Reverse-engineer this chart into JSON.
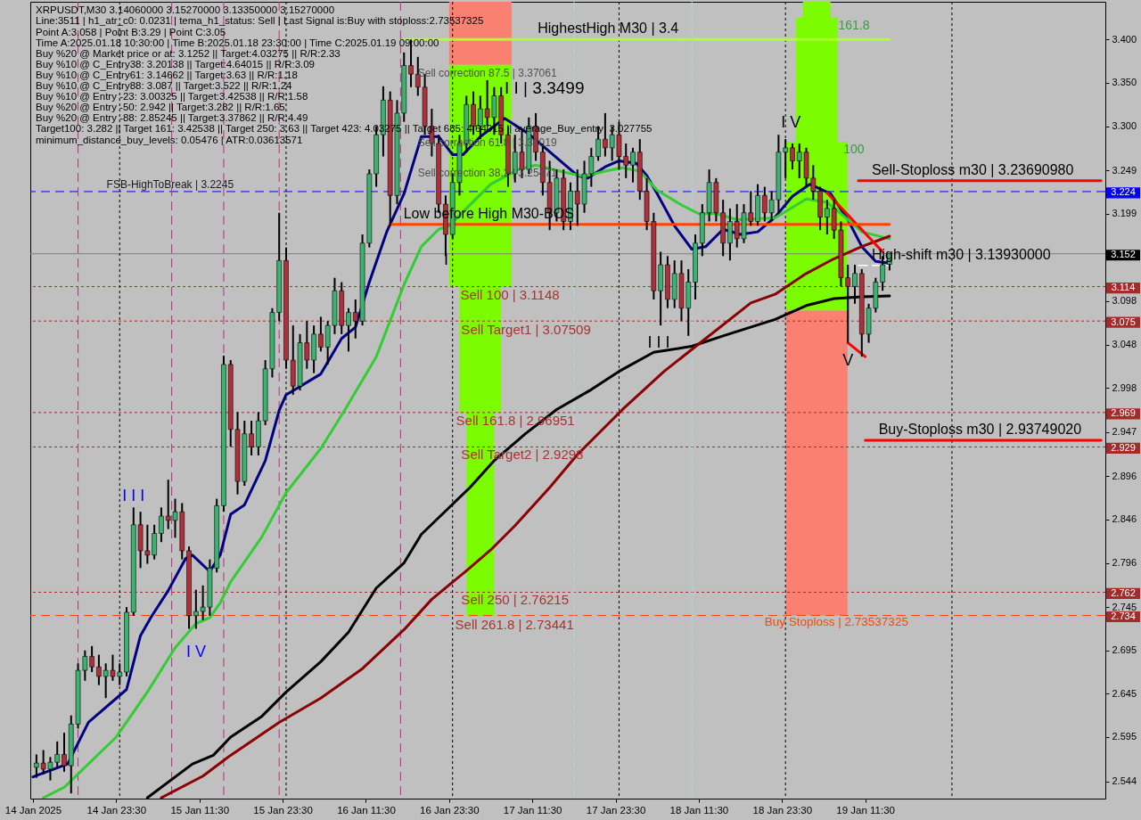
{
  "chart_data": {
    "type": "candlestick",
    "title": "XRPUSDT,M30  3.14060000 3.15270000 3.13350000 3.15270000",
    "xlim": [
      "2025-01-14T11:07",
      "2025-01-20T22:07"
    ],
    "ylim": [
      2.524,
      3.4435
    ],
    "xticks": [
      {
        "value": "2025-01-14T11:30",
        "label": "14 Jan 2025"
      },
      {
        "value": "2025-01-14T23:30",
        "label": "14 Jan 23:30"
      },
      {
        "value": "2025-01-15T11:30",
        "label": "15 Jan 11:30"
      },
      {
        "value": "2025-01-15T23:30",
        "label": "15 Jan 23:30"
      },
      {
        "value": "2025-01-16T11:30",
        "label": "16 Jan 11:30"
      },
      {
        "value": "2025-01-16T23:30",
        "label": "16 Jan 23:30"
      },
      {
        "value": "2025-01-17T11:30",
        "label": "17 Jan 11:30"
      },
      {
        "value": "2025-01-17T23:30",
        "label": "17 Jan 23:30"
      },
      {
        "value": "2025-01-18T11:30",
        "label": "18 Jan 11:30"
      },
      {
        "value": "2025-01-18T23:30",
        "label": "18 Jan 23:30"
      },
      {
        "value": "2025-01-19T11:30",
        "label": "19 Jan 11:30"
      }
    ],
    "yticks": [
      {
        "value": 3.4,
        "label": "3.400"
      },
      {
        "value": 3.35,
        "label": "3.350"
      },
      {
        "value": 3.3,
        "label": "3.300"
      },
      3.249,
      3.199,
      3.098,
      3.048,
      2.998,
      2.947,
      2.896,
      2.846,
      2.796,
      2.745,
      2.695,
      2.645,
      2.595,
      2.544
    ],
    "x": [
      "2025-01-14T12:00",
      "2025-01-14T13:00",
      "2025-01-14T14:00",
      "2025-01-14T15:00",
      "2025-01-14T16:00",
      "2025-01-14T17:00",
      "2025-01-14T18:00",
      "2025-01-14T19:00",
      "2025-01-14T20:00",
      "2025-01-14T21:00",
      "2025-01-14T22:00",
      "2025-01-14T23:00",
      "2025-01-15T00:00",
      "2025-01-15T01:00",
      "2025-01-15T02:00",
      "2025-01-15T03:00",
      "2025-01-15T04:00",
      "2025-01-15T05:00",
      "2025-01-15T06:00",
      "2025-01-15T07:00",
      "2025-01-15T08:00",
      "2025-01-15T09:00",
      "2025-01-15T10:00",
      "2025-01-15T11:00",
      "2025-01-15T12:00",
      "2025-01-15T13:00",
      "2025-01-15T14:00",
      "2025-01-15T15:00",
      "2025-01-15T16:00",
      "2025-01-15T17:00",
      "2025-01-15T18:00",
      "2025-01-15T19:00",
      "2025-01-15T20:00",
      "2025-01-15T21:00",
      "2025-01-15T22:00",
      "2025-01-15T23:00",
      "2025-01-16T00:00",
      "2025-01-16T01:00",
      "2025-01-16T02:00",
      "2025-01-16T03:00",
      "2025-01-16T04:00",
      "2025-01-16T05:00",
      "2025-01-16T06:00",
      "2025-01-16T07:00",
      "2025-01-16T08:00",
      "2025-01-16T09:00",
      "2025-01-16T10:00",
      "2025-01-16T11:00",
      "2025-01-16T12:00",
      "2025-01-16T13:00",
      "2025-01-16T14:00",
      "2025-01-16T15:00",
      "2025-01-16T16:00",
      "2025-01-16T17:00",
      "2025-01-16T18:00",
      "2025-01-16T19:00",
      "2025-01-16T20:00",
      "2025-01-16T21:00",
      "2025-01-16T22:00",
      "2025-01-16T23:00",
      "2025-01-17T00:00",
      "2025-01-17T01:00",
      "2025-01-17T02:00",
      "2025-01-17T03:00",
      "2025-01-17T04:00",
      "2025-01-17T05:00",
      "2025-01-17T06:00",
      "2025-01-17T07:00",
      "2025-01-17T08:00",
      "2025-01-17T09:00",
      "2025-01-17T10:00",
      "2025-01-17T11:00",
      "2025-01-17T12:00",
      "2025-01-17T13:00",
      "2025-01-17T14:00",
      "2025-01-17T15:00",
      "2025-01-17T16:00",
      "2025-01-17T17:00",
      "2025-01-17T18:00",
      "2025-01-17T19:00",
      "2025-01-17T20:00",
      "2025-01-17T21:00",
      "2025-01-17T22:00",
      "2025-01-17T23:00",
      "2025-01-18T00:00",
      "2025-01-18T01:00",
      "2025-01-18T02:00",
      "2025-01-18T03:00",
      "2025-01-18T04:00",
      "2025-01-18T05:00",
      "2025-01-18T06:00",
      "2025-01-18T07:00",
      "2025-01-18T08:00",
      "2025-01-18T09:00",
      "2025-01-18T10:00",
      "2025-01-18T11:00",
      "2025-01-18T12:00",
      "2025-01-18T13:00",
      "2025-01-18T14:00",
      "2025-01-18T15:00",
      "2025-01-18T16:00",
      "2025-01-18T17:00",
      "2025-01-18T18:00",
      "2025-01-18T19:00",
      "2025-01-18T20:00",
      "2025-01-18T21:00",
      "2025-01-18T22:00",
      "2025-01-18T23:00",
      "2025-01-19T00:00",
      "2025-01-19T01:00",
      "2025-01-19T02:00",
      "2025-01-19T03:00",
      "2025-01-19T04:00",
      "2025-01-19T05:00",
      "2025-01-19T06:00",
      "2025-01-19T07:00",
      "2025-01-19T08:00",
      "2025-01-19T09:00",
      "2025-01-19T10:00",
      "2025-01-19T11:00",
      "2025-01-19T12:00",
      "2025-01-19T13:00",
      "2025-01-19T14:00",
      "2025-01-19T15:00"
    ],
    "ohlc": [
      [
        2.56,
        2.575,
        2.548,
        2.565
      ],
      [
        2.565,
        2.58,
        2.552,
        2.558
      ],
      [
        2.558,
        2.572,
        2.545,
        2.566
      ],
      [
        2.566,
        2.59,
        2.56,
        2.575
      ],
      [
        2.575,
        2.6,
        2.555,
        2.562
      ],
      [
        2.562,
        2.62,
        2.53,
        2.61
      ],
      [
        2.61,
        2.68,
        2.605,
        2.672
      ],
      [
        2.672,
        2.695,
        2.66,
        2.688
      ],
      [
        2.688,
        2.7,
        2.67,
        2.676
      ],
      [
        2.676,
        2.69,
        2.655,
        2.665
      ],
      [
        2.665,
        2.68,
        2.64,
        2.672
      ],
      [
        2.672,
        2.69,
        2.66,
        2.665
      ],
      [
        2.665,
        2.68,
        2.655,
        2.67
      ],
      [
        2.67,
        2.745,
        2.665,
        2.739
      ],
      [
        2.739,
        2.86,
        2.735,
        2.84
      ],
      [
        2.84,
        2.855,
        2.79,
        2.81
      ],
      [
        2.81,
        2.84,
        2.795,
        2.805
      ],
      [
        2.805,
        2.84,
        2.8,
        2.83
      ],
      [
        2.83,
        2.86,
        2.82,
        2.85
      ],
      [
        2.85,
        2.892,
        2.835,
        2.845
      ],
      [
        2.845,
        2.87,
        2.825,
        2.855
      ],
      [
        2.855,
        2.865,
        2.8,
        2.81
      ],
      [
        2.81,
        2.815,
        2.72,
        2.735
      ],
      [
        2.735,
        2.765,
        2.72,
        2.74
      ],
      [
        2.74,
        2.77,
        2.73,
        2.745
      ],
      [
        2.745,
        2.8,
        2.735,
        2.79
      ],
      [
        2.79,
        2.87,
        2.785,
        2.862
      ],
      [
        2.862,
        3.035,
        2.855,
        3.025
      ],
      [
        3.025,
        3.03,
        2.93,
        2.95
      ],
      [
        2.95,
        2.97,
        2.875,
        2.89
      ],
      [
        2.89,
        2.96,
        2.885,
        2.945
      ],
      [
        2.945,
        2.96,
        2.92,
        2.93
      ],
      [
        2.93,
        2.97,
        2.92,
        2.96
      ],
      [
        2.96,
        3.03,
        2.955,
        3.02
      ],
      [
        3.02,
        3.09,
        3.01,
        3.085
      ],
      [
        3.085,
        3.2,
        3.075,
        3.145
      ],
      [
        3.145,
        3.16,
        3.02,
        3.03
      ],
      [
        3.03,
        3.07,
        2.99,
        3.0
      ],
      [
        3.0,
        3.06,
        2.995,
        3.05
      ],
      [
        3.05,
        3.075,
        3.02,
        3.03
      ],
      [
        3.03,
        3.07,
        3.015,
        3.06
      ],
      [
        3.06,
        3.08,
        3.04,
        3.045
      ],
      [
        3.045,
        3.075,
        3.025,
        3.07
      ],
      [
        3.07,
        3.125,
        3.06,
        3.11
      ],
      [
        3.11,
        3.12,
        3.06,
        3.07
      ],
      [
        3.07,
        3.09,
        3.04,
        3.085
      ],
      [
        3.085,
        3.1,
        3.055,
        3.075
      ],
      [
        3.075,
        3.175,
        3.07,
        3.165
      ],
      [
        3.165,
        3.25,
        3.16,
        3.245
      ],
      [
        3.245,
        3.3,
        3.23,
        3.29
      ],
      [
        3.29,
        3.346,
        3.265,
        3.33
      ],
      [
        3.33,
        3.34,
        3.185,
        3.22
      ],
      [
        3.22,
        3.33,
        3.21,
        3.315
      ],
      [
        3.315,
        3.385,
        3.305,
        3.37
      ],
      [
        3.37,
        3.4,
        3.345,
        3.36
      ],
      [
        3.36,
        3.38,
        3.335,
        3.345
      ],
      [
        3.345,
        3.36,
        3.29,
        3.3
      ],
      [
        3.3,
        3.32,
        3.265,
        3.28
      ],
      [
        3.28,
        3.29,
        3.2,
        3.21
      ],
      [
        3.21,
        3.22,
        3.15,
        3.175
      ],
      [
        3.175,
        3.245,
        3.17,
        3.235
      ],
      [
        3.235,
        3.29,
        3.22,
        3.28
      ],
      [
        3.28,
        3.335,
        3.27,
        3.325
      ],
      [
        3.325,
        3.34,
        3.29,
        3.3
      ],
      [
        3.3,
        3.335,
        3.285,
        3.32
      ],
      [
        3.32,
        3.353,
        3.3,
        3.31
      ],
      [
        3.31,
        3.345,
        3.29,
        3.335
      ],
      [
        3.335,
        3.345,
        3.28,
        3.29
      ],
      [
        3.29,
        3.3,
        3.23,
        3.245
      ],
      [
        3.245,
        3.29,
        3.235,
        3.27
      ],
      [
        3.27,
        3.295,
        3.24,
        3.25
      ],
      [
        3.25,
        3.31,
        3.245,
        3.3
      ],
      [
        3.3,
        3.315,
        3.26,
        3.27
      ],
      [
        3.27,
        3.28,
        3.22,
        3.235
      ],
      [
        3.235,
        3.26,
        3.18,
        3.2
      ],
      [
        3.2,
        3.25,
        3.19,
        3.24
      ],
      [
        3.24,
        3.25,
        3.18,
        3.19
      ],
      [
        3.19,
        3.235,
        3.18,
        3.225
      ],
      [
        3.225,
        3.25,
        3.185,
        3.21
      ],
      [
        3.21,
        3.26,
        3.2,
        3.245
      ],
      [
        3.245,
        3.275,
        3.23,
        3.265
      ],
      [
        3.265,
        3.3,
        3.26,
        3.285
      ],
      [
        3.285,
        3.315,
        3.265,
        3.275
      ],
      [
        3.275,
        3.3,
        3.26,
        3.29
      ],
      [
        3.29,
        3.305,
        3.25,
        3.265
      ],
      [
        3.265,
        3.28,
        3.24,
        3.255
      ],
      [
        3.255,
        3.275,
        3.235,
        3.27
      ],
      [
        3.27,
        3.285,
        3.215,
        3.225
      ],
      [
        3.225,
        3.24,
        3.18,
        3.19
      ],
      [
        3.19,
        3.2,
        3.1,
        3.11
      ],
      [
        3.11,
        3.155,
        3.07,
        3.14
      ],
      [
        3.14,
        3.15,
        3.09,
        3.1
      ],
      [
        3.1,
        3.145,
        3.09,
        3.13
      ],
      [
        3.13,
        3.145,
        3.075,
        3.09
      ],
      [
        3.09,
        3.135,
        3.058,
        3.12
      ],
      [
        3.12,
        3.175,
        3.1,
        3.165
      ],
      [
        3.165,
        3.21,
        3.15,
        3.2
      ],
      [
        3.2,
        3.25,
        3.19,
        3.235
      ],
      [
        3.235,
        3.24,
        3.19,
        3.2
      ],
      [
        3.2,
        3.215,
        3.15,
        3.165
      ],
      [
        3.165,
        3.205,
        3.145,
        3.19
      ],
      [
        3.19,
        3.21,
        3.16,
        3.17
      ],
      [
        3.17,
        3.21,
        3.165,
        3.2
      ],
      [
        3.2,
        3.225,
        3.185,
        3.19
      ],
      [
        3.19,
        3.233,
        3.185,
        3.22
      ],
      [
        3.22,
        3.23,
        3.19,
        3.2
      ],
      [
        3.2,
        3.225,
        3.19,
        3.215
      ],
      [
        3.215,
        3.29,
        3.2,
        3.27
      ],
      [
        3.27,
        3.285,
        3.24,
        3.275
      ],
      [
        3.275,
        3.28,
        3.25,
        3.26
      ],
      [
        3.26,
        3.28,
        3.24,
        3.27
      ],
      [
        3.27,
        3.275,
        3.23,
        3.24
      ],
      [
        3.24,
        3.255,
        3.215,
        3.225
      ],
      [
        3.225,
        3.23,
        3.18,
        3.195
      ],
      [
        3.195,
        3.215,
        3.175,
        3.205
      ],
      [
        3.205,
        3.215,
        3.17,
        3.18
      ],
      [
        3.18,
        3.19,
        3.115,
        3.125
      ],
      [
        3.125,
        3.14,
        3.05,
        3.115
      ],
      [
        3.115,
        3.14,
        3.095,
        3.13
      ],
      [
        3.13,
        3.135,
        3.034,
        3.06
      ],
      [
        3.06,
        3.095,
        3.05,
        3.09
      ],
      [
        3.09,
        3.125,
        3.085,
        3.12
      ],
      [
        3.12,
        3.15,
        3.11,
        3.14
      ],
      [
        3.1406,
        3.1527,
        3.1335,
        3.1527
      ]
    ],
    "colors": [
      "#3cb371",
      "#b0303a",
      "#3cb371",
      "#3cb371",
      "#b0303a",
      "#3cb371",
      "#3cb371",
      "#3cb371",
      "#b0303a",
      "#b0303a",
      "#3cb371",
      "#b0303a",
      "#3cb371",
      "#3cb371",
      "#3cb371",
      "#b0303a",
      "#b0303a",
      "#3cb371",
      "#3cb371",
      "#b0303a",
      "#3cb371",
      "#b0303a",
      "#b0303a",
      "#3cb371",
      "#3cb371",
      "#3cb371",
      "#3cb371",
      "#3cb371",
      "#b0303a",
      "#b0303a",
      "#3cb371",
      "#b0303a",
      "#3cb371",
      "#3cb371",
      "#3cb371",
      "#3cb371",
      "#b0303a",
      "#b0303a",
      "#3cb371",
      "#b0303a",
      "#3cb371",
      "#b0303a",
      "#3cb371",
      "#3cb371",
      "#b0303a",
      "#3cb371",
      "#b0303a",
      "#3cb371",
      "#3cb371",
      "#3cb371",
      "#3cb371",
      "#b0303a",
      "#3cb371",
      "#3cb371",
      "#b0303a",
      "#b0303a",
      "#b0303a",
      "#b0303a",
      "#b0303a",
      "#b0303a",
      "#3cb371",
      "#3cb371",
      "#3cb371",
      "#b0303a",
      "#3cb371",
      "#b0303a",
      "#3cb371",
      "#b0303a",
      "#b0303a",
      "#3cb371",
      "#b0303a",
      "#3cb371",
      "#b0303a",
      "#b0303a",
      "#b0303a",
      "#3cb371",
      "#b0303a",
      "#3cb371",
      "#b0303a",
      "#3cb371",
      "#3cb371",
      "#3cb371",
      "#b0303a",
      "#3cb371",
      "#b0303a",
      "#b0303a",
      "#3cb371",
      "#b0303a",
      "#b0303a",
      "#b0303a",
      "#3cb371",
      "#b0303a",
      "#3cb371",
      "#b0303a",
      "#3cb371",
      "#3cb371",
      "#3cb371",
      "#3cb371",
      "#b0303a",
      "#b0303a",
      "#3cb371",
      "#b0303a",
      "#3cb371",
      "#b0303a",
      "#3cb371",
      "#b0303a",
      "#3cb371",
      "#3cb371",
      "#3cb371",
      "#b0303a",
      "#3cb371",
      "#b0303a",
      "#b0303a",
      "#b0303a",
      "#3cb371",
      "#b0303a",
      "#b0303a",
      "#b0303a",
      "#3cb371",
      "#b0303a",
      "#3cb371",
      "#3cb371",
      "#3cb371",
      "#3cb371"
    ],
    "series": [
      {
        "type": "bar",
        "color": "#fa8072",
        "x": [
          "2025-01-17T04:00"
        ],
        "values": [
          0.07289
        ],
        "base": [
          3.37061
        ]
      },
      {
        "type": "bar",
        "color": "#7cfc00",
        "x": [
          "2025-01-17T04:00"
        ],
        "values": [
          0.25581
        ],
        "base": [
          3.1148
        ]
      },
      {
        "type": "bar",
        "color": "#7cfc00",
        "x": [
          "2025-01-17T04:00"
        ],
        "values": [
          0.14529
        ],
        "base": [
          2.96951
        ]
      },
      {
        "type": "bar",
        "color": "#7cfc00",
        "x": [
          "2025-01-17T04:00"
        ],
        "values": [
          0.2351
        ],
        "base": [
          2.73441
        ]
      },
      {
        "type": "bar",
        "color": "#7cfc00",
        "x": [
          "2025-01-19T04:30"
        ],
        "values": [
          0.01812
        ],
        "base": [
          3.42538
        ]
      },
      {
        "type": "bar",
        "color": "#7cfc00",
        "x": [
          "2025-01-19T04:30"
        ],
        "values": [
          0.14338
        ],
        "base": [
          3.282
        ]
      },
      {
        "type": "bar",
        "color": "#7cfc00",
        "x": [
          "2025-01-19T04:30"
        ],
        "values": [
          0.195
        ],
        "base": [
          3.087
        ]
      },
      {
        "type": "bar",
        "color": "#fa8072",
        "x": [
          "2025-01-19T04:30"
        ],
        "values": [
          0.35163
        ],
        "base": [
          2.73537325
        ]
      },
      {
        "type": "line",
        "color": "#000080",
        "x": [
          "2025-01-14T11:30",
          "2025-01-14T16:30",
          "2025-01-14T19:30",
          "2025-01-15T01:00",
          "2025-01-15T03:00",
          "2025-01-15T04:30",
          "2025-01-15T07:00",
          "2025-01-15T09:30",
          "2025-01-15T10:30",
          "2025-01-15T13:00",
          "2025-01-15T14:30",
          "2025-01-15T16:00",
          "2025-01-15T18:00",
          "2025-01-15T21:00",
          "2025-01-15T23:00",
          "2025-01-16T00:00",
          "2025-01-16T05:00",
          "2025-01-16T08:00",
          "2025-01-16T10:00",
          "2025-01-16T12:00",
          "2025-01-16T14:30",
          "2025-01-16T17:00",
          "2025-01-16T19:30",
          "2025-01-16T22:00",
          "2025-01-17T00:00",
          "2025-01-17T01:30",
          "2025-01-17T04:00",
          "2025-01-17T07:30",
          "2025-01-17T11:00",
          "2025-01-17T14:30",
          "2025-01-17T18:00",
          "2025-01-17T19:30",
          "2025-01-17T22:00",
          "2025-01-18T00:00",
          "2025-01-18T02:30",
          "2025-01-18T04:00",
          "2025-01-18T05:30",
          "2025-01-18T08:00",
          "2025-01-18T10:30",
          "2025-01-18T12:30",
          "2025-01-18T15:00",
          "2025-01-18T17:30",
          "2025-01-18T20:00",
          "2025-01-18T22:30",
          "2025-01-19T01:00",
          "2025-01-19T03:30",
          "2025-01-19T06:30",
          "2025-01-19T09:00",
          "2025-01-19T11:00",
          "2025-01-19T13:00",
          "2025-01-19T15:00"
        ],
        "values": [
          2.549,
          2.564,
          2.612,
          2.65,
          2.712,
          2.733,
          2.764,
          2.801,
          2.805,
          2.786,
          2.805,
          2.852,
          2.863,
          2.914,
          2.972,
          2.99,
          3.014,
          3.055,
          3.068,
          3.12,
          3.178,
          3.222,
          3.288,
          3.288,
          3.267,
          3.267,
          3.288,
          3.309,
          3.291,
          3.267,
          3.243,
          3.24,
          3.253,
          3.26,
          3.257,
          3.243,
          3.222,
          3.185,
          3.158,
          3.161,
          3.181,
          3.175,
          3.178,
          3.195,
          3.219,
          3.233,
          3.222,
          3.192,
          3.161,
          3.144,
          3.142
        ]
      },
      {
        "type": "line",
        "color": "#32cd32",
        "x": [
          "2025-01-14T13:00",
          "2025-01-14T16:00",
          "2025-01-14T23:30",
          "2025-01-15T04:00",
          "2025-01-15T08:00",
          "2025-01-15T11:00",
          "2025-01-15T13:00",
          "2025-01-15T14:30",
          "2025-01-15T16:00",
          "2025-01-15T20:30",
          "2025-01-16T00:00",
          "2025-01-16T05:00",
          "2025-01-16T08:30",
          "2025-01-16T13:00",
          "2025-01-16T17:00",
          "2025-01-16T19:30",
          "2025-01-16T22:00",
          "2025-01-16T23:30",
          "2025-01-17T02:00",
          "2025-01-17T05:30",
          "2025-01-17T09:30",
          "2025-01-17T12:00",
          "2025-01-17T16:00",
          "2025-01-17T19:00",
          "2025-01-17T22:00",
          "2025-01-18T00:30",
          "2025-01-18T03:00",
          "2025-01-18T05:30",
          "2025-01-18T09:00",
          "2025-01-18T11:30",
          "2025-01-18T14:00",
          "2025-01-18T17:00",
          "2025-01-18T22:30",
          "2025-01-19T03:00",
          "2025-01-19T06:00",
          "2025-01-19T08:00",
          "2025-01-19T11:00",
          "2025-01-19T15:00"
        ],
        "values": [
          2.525,
          2.537,
          2.595,
          2.647,
          2.698,
          2.726,
          2.733,
          2.75,
          2.774,
          2.826,
          2.877,
          2.928,
          2.973,
          3.034,
          3.117,
          3.161,
          3.181,
          3.185,
          3.205,
          3.233,
          3.25,
          3.255,
          3.247,
          3.242,
          3.248,
          3.252,
          3.248,
          3.226,
          3.209,
          3.199,
          3.199,
          3.192,
          3.194,
          3.216,
          3.212,
          3.199,
          3.178,
          3.17
        ]
      },
      {
        "type": "line",
        "color": "#000000",
        "x": [
          "2025-01-15T04:00",
          "2025-01-15T10:30",
          "2025-01-15T13:30",
          "2025-01-15T16:00",
          "2025-01-15T20:30",
          "2025-01-16T00:00",
          "2025-01-16T05:00",
          "2025-01-16T09:00",
          "2025-01-16T13:00",
          "2025-01-16T17:00",
          "2025-01-16T19:30",
          "2025-01-16T23:00",
          "2025-01-17T02:30",
          "2025-01-17T06:00",
          "2025-01-17T10:30",
          "2025-01-17T15:00",
          "2025-01-17T20:00",
          "2025-01-18T00:00",
          "2025-01-18T05:00",
          "2025-01-18T10:30",
          "2025-01-18T15:00",
          "2025-01-18T22:30",
          "2025-01-19T03:00",
          "2025-01-19T07:00",
          "2025-01-19T11:00",
          "2025-01-19T15:00"
        ],
        "values": [
          2.525,
          2.564,
          2.574,
          2.595,
          2.619,
          2.647,
          2.682,
          2.716,
          2.767,
          2.796,
          2.829,
          2.856,
          2.883,
          2.914,
          2.945,
          2.973,
          2.996,
          3.017,
          3.039,
          3.046,
          3.058,
          3.077,
          3.093,
          3.101,
          3.103,
          3.104
        ]
      },
      {
        "type": "line",
        "color": "#8b0000",
        "x": [
          "2025-01-15T06:00",
          "2025-01-15T12:00",
          "2025-01-15T16:00",
          "2025-01-15T23:00",
          "2025-01-16T05:00",
          "2025-01-16T11:00",
          "2025-01-16T17:00",
          "2025-01-16T21:00",
          "2025-01-17T02:00",
          "2025-01-17T05:30",
          "2025-01-17T09:00",
          "2025-01-17T14:00",
          "2025-01-17T18:00",
          "2025-01-18T00:30",
          "2025-01-18T06:30",
          "2025-01-18T12:30",
          "2025-01-18T19:00",
          "2025-01-18T22:30",
          "2025-01-19T03:00",
          "2025-01-19T07:00",
          "2025-01-19T11:00",
          "2025-01-19T15:00"
        ],
        "values": [
          2.525,
          2.55,
          2.574,
          2.612,
          2.64,
          2.674,
          2.719,
          2.754,
          2.787,
          2.811,
          2.839,
          2.883,
          2.921,
          2.973,
          3.017,
          3.055,
          3.096,
          3.106,
          3.13,
          3.147,
          3.161,
          3.173
        ]
      },
      {
        "type": "line",
        "color": "#ff0000",
        "x": [
          "2025-01-19T06:00",
          "2025-01-19T14:00"
        ],
        "values": [
          3.223,
          3.155
        ]
      },
      {
        "type": "line",
        "color": "#ff0000",
        "x": [
          "2025-01-19T09:00",
          "2025-01-19T11:30"
        ],
        "values": [
          3.05,
          3.034
        ]
      },
      {
        "type": "line",
        "name": "HighestHigh   M30 | 3.4",
        "color": "#adff2f",
        "x": [
          "2025-01-16T17:00",
          "2025-01-19T15:00"
        ],
        "values": [
          3.4,
          3.4
        ]
      },
      {
        "type": "line",
        "name": "Low before High   M30-BOS",
        "color": "#ff4500",
        "x": [
          "2025-01-16T15:00",
          "2025-01-19T15:00"
        ],
        "values": [
          3.1867,
          3.1867
        ]
      },
      {
        "type": "line",
        "name": "Sell-Stoploss m30 | 3.23690980",
        "color": "#ff0000",
        "x": [
          "2025-01-19T10:30",
          "2025-01-20T21:30"
        ],
        "values": [
          3.2369098,
          3.2369098
        ]
      },
      {
        "type": "line",
        "name": "High-shift m30 | 3.13930000",
        "color": "#ffffff",
        "line_style": "dashed",
        "x": [
          "2025-01-19T10:30",
          "2025-01-19T15:00"
        ],
        "values": [
          3.1393,
          3.1393
        ]
      },
      {
        "type": "line",
        "name": "Buy-Stoploss m30 | 2.93749020",
        "color": "#ff0000",
        "x": [
          "2025-01-19T11:30",
          "2025-01-20T21:30"
        ],
        "values": [
          2.9374902,
          2.9374902
        ]
      }
    ],
    "ref_lines": [
      {
        "axis": "y",
        "value": 3.2245,
        "label": "FSB-HighToBreak | 3.2245",
        "color": "#0000ff",
        "line_style": "dashed"
      },
      {
        "axis": "y",
        "value": 3.1527,
        "color": "#808080",
        "line_style": "solid"
      },
      {
        "axis": "y",
        "value": 3.1148,
        "label": "Sell 100 | 3.1148",
        "color": "#a52a2a",
        "line_style": "dotted"
      },
      {
        "axis": "y",
        "value": 3.07509,
        "label": "Sell Target1 | 3.07509",
        "color": "#a52a2a",
        "line_style": "dotted"
      },
      {
        "axis": "y",
        "value": 2.96951,
        "label": "Sell 161.8 | 2.96951",
        "color": "#a52a2a",
        "line_style": "dotted"
      },
      {
        "axis": "y",
        "value": 2.9298,
        "label": "Sell Target2 | 2.9298",
        "color": "#a52a2a",
        "line_style": "dotted"
      },
      {
        "axis": "y",
        "value": 2.76215,
        "label": "Sell  250 | 2.76215",
        "color": "#a52a2a",
        "line_style": "dotted"
      },
      {
        "axis": "y",
        "value": 2.73537325,
        "label": "Buy Stoploss | 2.73537325",
        "color": "#ff4500",
        "line_style": "dashed"
      },
      {
        "axis": "x",
        "value": "2025-01-15T00:00",
        "color": "#000000",
        "line_style": "dotted"
      },
      {
        "axis": "x",
        "value": "2025-01-16T00:00",
        "color": "#000000",
        "line_style": "dotted"
      },
      {
        "axis": "x",
        "value": "2025-01-17T00:00",
        "color": "#000000",
        "line_style": "dotted"
      },
      {
        "axis": "x",
        "value": "2025-01-18T00:00",
        "color": "#000000",
        "line_style": "dotted"
      },
      {
        "axis": "x",
        "value": "2025-01-19T00:00",
        "color": "#000000",
        "line_style": "dotted"
      },
      {
        "axis": "x",
        "value": "2025-01-20T00:00",
        "color": "#000000",
        "line_style": "dotted"
      },
      {
        "axis": "x",
        "value": "2025-01-14T18:00",
        "color": "#b03080",
        "line_style": "dashed"
      },
      {
        "axis": "x",
        "value": "2025-01-15T07:30",
        "color": "#b03080",
        "line_style": "dashed"
      },
      {
        "axis": "x",
        "value": "2025-01-15T15:00",
        "color": "#b03080",
        "line_style": "dashed"
      },
      {
        "axis": "x",
        "value": "2025-01-15T23:00",
        "color": "#b03080",
        "line_style": "dashed"
      },
      {
        "axis": "x",
        "value": "2025-01-16T16:30",
        "color": "#b03080",
        "line_style": "dashed"
      },
      {
        "axis": "x",
        "value": "2025-01-17T17:30",
        "color": "#add8e6",
        "line_style": "dashed"
      },
      {
        "axis": "x",
        "value": "2025-01-18T10:30",
        "color": "#add8e6",
        "line_style": "dashed"
      }
    ],
    "annotations": [
      "Line:3511 | h1_atr_c0: 0.0231 | tema_h1_status: Sell | Last Signal is:Buy with stoploss:2.73537325",
      "Point A:3.058 | Point B:3.29 | Point C:3.05",
      "Time A:2025.01.18 10:30:00 | Time B:2025.01.18 23:30:00 | Time C:2025.01.19 09:00:00",
      "Buy %20 @ Market price or at: 3.1252 || Target:4.03275 || R/R:2.33",
      "Buy %10 @ C_Entry38: 3.20138 || Target:4.64015 || R/R:3.09",
      "Buy %10 @ C_Entry61: 3.14662 || Target:3.63 || R/R:1.18",
      "Buy %10 @ C_Entry88: 3.087 || Target:3.522 || R/R:1.24",
      "Buy %10 @ Entry -23: 3.00325 || Target:3.42538 || R/R:1.58",
      "Buy %20 @ Entry -50: 2.942 || Target:3.282 || R/R:1.65",
      "Buy %20 @ Entry -88: 2.85245 || Target:3.37862 || R/R:4.49",
      "Target100: 3.282 || Target 161: 3.42538 || Target 250: 3.63 || Target 423: 4.03275 || Target 685: 4.64015 || average_Buy_entry: 3.027755",
      "minimum_distance_buy_levels: 0.05476 | ATR:0.03613571",
      "Sell correction 87.5 | 3.37061",
      "I I | 3.3499",
      "Sell correction 61.8 | 3.31019",
      "Sell correction 38.2 | 3.25471",
      "I",
      "Sell  261.8 | 2.73441",
      "I I I",
      "I V",
      "V",
      "161.8",
      "100",
      {
        "text": "I I I",
        "x": "2025-01-15T02:00",
        "y": 2.86
      },
      "I V",
      "3.224",
      "3.152",
      "3.114",
      "3.075",
      "2.969",
      "2.929",
      "2.762",
      "2.734"
    ]
  }
}
